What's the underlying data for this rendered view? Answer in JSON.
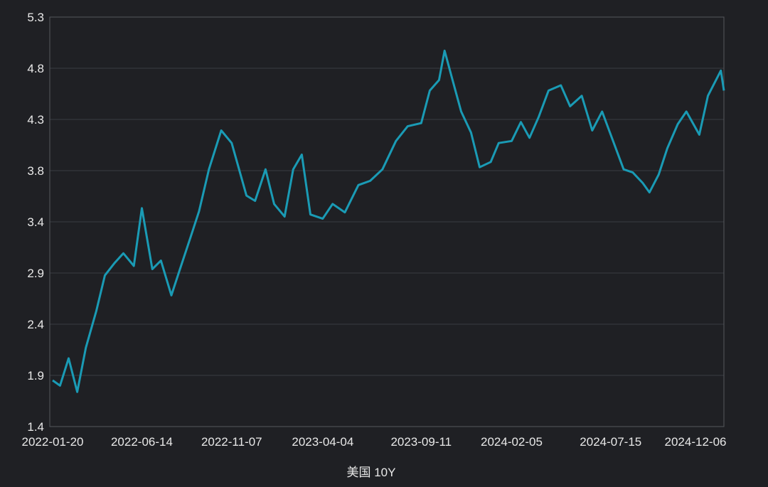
{
  "chart_data": {
    "type": "line",
    "title": "",
    "xlabel": "美国 10Y",
    "ylabel": "",
    "ylim": [
      1.4,
      5.3
    ],
    "yticks": [
      "1.4",
      "1.9",
      "2.4",
      "2.9",
      "3.4",
      "3.8",
      "4.3",
      "4.8",
      "5.3"
    ],
    "xticks": [
      "2022-01-20",
      "2022-06-14",
      "2022-11-07",
      "2023-04-04",
      "2023-09-11",
      "2024-02-05",
      "2024-07-15",
      "2024-12-06"
    ],
    "grid": true,
    "line_color": "#1a9bb5",
    "series": [
      {
        "name": "",
        "x": [
          "2022-01-20",
          "2022-02-01",
          "2022-02-15",
          "2022-03-01",
          "2022-03-15",
          "2022-04-01",
          "2022-04-15",
          "2022-05-01",
          "2022-05-15",
          "2022-06-01",
          "2022-06-14",
          "2022-07-01",
          "2022-07-15",
          "2022-08-01",
          "2022-08-15",
          "2022-09-01",
          "2022-09-15",
          "2022-10-01",
          "2022-10-21",
          "2022-11-07",
          "2022-12-01",
          "2022-12-15",
          "2023-01-01",
          "2023-01-15",
          "2023-02-01",
          "2023-02-15",
          "2023-03-01",
          "2023-03-15",
          "2023-04-04",
          "2023-04-20",
          "2023-05-10",
          "2023-06-01",
          "2023-06-20",
          "2023-07-10",
          "2023-08-01",
          "2023-08-20",
          "2023-09-11",
          "2023-09-25",
          "2023-10-10",
          "2023-10-19",
          "2023-11-01",
          "2023-11-15",
          "2023-12-01",
          "2023-12-15",
          "2024-01-02",
          "2024-01-15",
          "2024-02-05",
          "2024-02-20",
          "2024-03-05",
          "2024-03-20",
          "2024-04-05",
          "2024-04-25",
          "2024-05-10",
          "2024-05-29",
          "2024-06-15",
          "2024-07-01",
          "2024-07-15",
          "2024-08-05",
          "2024-08-20",
          "2024-09-05",
          "2024-09-16",
          "2024-10-01",
          "2024-10-15",
          "2024-11-01",
          "2024-11-15",
          "2024-12-06",
          "2024-12-20",
          "2025-01-10",
          "2025-01-15"
        ],
        "values": [
          1.84,
          1.79,
          2.05,
          1.73,
          2.15,
          2.5,
          2.84,
          2.96,
          3.05,
          2.93,
          3.48,
          2.9,
          2.98,
          2.65,
          2.9,
          3.2,
          3.45,
          3.85,
          4.22,
          4.1,
          3.6,
          3.55,
          3.85,
          3.52,
          3.4,
          3.85,
          3.99,
          3.42,
          3.38,
          3.52,
          3.44,
          3.7,
          3.74,
          3.85,
          4.12,
          4.26,
          4.29,
          4.6,
          4.7,
          4.98,
          4.7,
          4.4,
          4.2,
          3.87,
          3.92,
          4.1,
          4.12,
          4.3,
          4.15,
          4.35,
          4.6,
          4.65,
          4.45,
          4.55,
          4.22,
          4.4,
          4.18,
          3.85,
          3.82,
          3.72,
          3.63,
          3.8,
          4.05,
          4.28,
          4.4,
          4.18,
          4.55,
          4.79,
          4.6
        ]
      }
    ]
  }
}
